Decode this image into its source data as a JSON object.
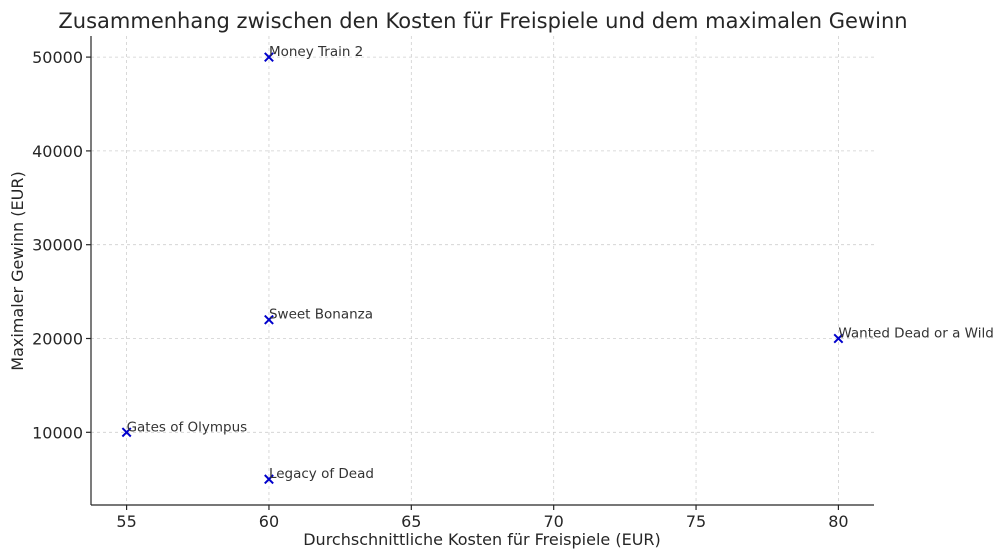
{
  "chart_data": {
    "type": "scatter",
    "title": "Zusammenhang zwischen den Kosten für Freispiele und dem maximalen Gewinn",
    "xlabel": "Durchschnittliche Kosten für Freispiele (EUR)",
    "ylabel": "Maximaler Gewinn (EUR)",
    "xlim": [
      53.75,
      81.25
    ],
    "ylim": [
      2250,
      52250
    ],
    "xticks": [
      55,
      60,
      65,
      70,
      75,
      80
    ],
    "yticks": [
      10000,
      20000,
      30000,
      40000,
      50000
    ],
    "grid": true,
    "marker": "x",
    "marker_color": "#0000cc",
    "points": [
      {
        "label": "Money Train 2",
        "x": 60,
        "y": 50000
      },
      {
        "label": "Sweet Bonanza",
        "x": 60,
        "y": 22000
      },
      {
        "label": "Wanted Dead or a Wild",
        "x": 80,
        "y": 20000
      },
      {
        "label": "Gates of Olympus",
        "x": 55,
        "y": 10000
      },
      {
        "label": "Legacy of Dead",
        "x": 60,
        "y": 5000
      }
    ]
  }
}
